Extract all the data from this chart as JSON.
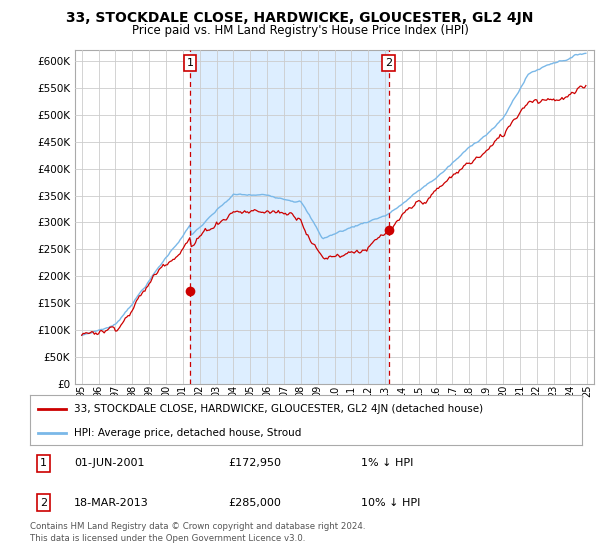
{
  "title": "33, STOCKDALE CLOSE, HARDWICKE, GLOUCESTER, GL2 4JN",
  "subtitle": "Price paid vs. HM Land Registry's House Price Index (HPI)",
  "ylabel_ticks": [
    "£0",
    "£50K",
    "£100K",
    "£150K",
    "£200K",
    "£250K",
    "£300K",
    "£350K",
    "£400K",
    "£450K",
    "£500K",
    "£550K",
    "£600K"
  ],
  "ytick_values": [
    0,
    50000,
    100000,
    150000,
    200000,
    250000,
    300000,
    350000,
    400000,
    450000,
    500000,
    550000,
    600000
  ],
  "ylim": [
    0,
    620000
  ],
  "hpi_color": "#7ab8e8",
  "price_color": "#cc0000",
  "shade_color": "#ddeeff",
  "marker1_date": 2001.42,
  "marker1_price": 172950,
  "marker2_date": 2013.21,
  "marker2_price": 285000,
  "legend_line1": "33, STOCKDALE CLOSE, HARDWICKE, GLOUCESTER, GL2 4JN (detached house)",
  "legend_line2": "HPI: Average price, detached house, Stroud",
  "table_row1": [
    "1",
    "01-JUN-2001",
    "£172,950",
    "1% ↓ HPI"
  ],
  "table_row2": [
    "2",
    "18-MAR-2013",
    "£285,000",
    "10% ↓ HPI"
  ],
  "footer": "Contains HM Land Registry data © Crown copyright and database right 2024.\nThis data is licensed under the Open Government Licence v3.0.",
  "background_color": "#ffffff",
  "grid_color": "#cccccc"
}
